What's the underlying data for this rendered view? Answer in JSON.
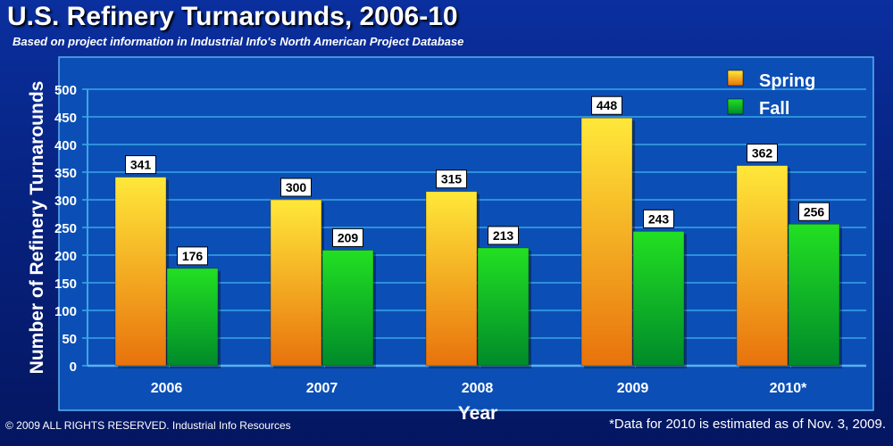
{
  "header": {
    "title": "U.S. Refinery Turnarounds, 2006-10",
    "subtitle": "Based on project information in Industrial Info's North American Project Database"
  },
  "footer": {
    "copyright": "© 2009 ALL RIGHTS RESERVED. Industrial Info Resources",
    "note": "*Data for 2010 is estimated as of Nov. 3, 2009."
  },
  "colors": {
    "spring_top": "#ffe83a",
    "spring_bottom": "#e8720c",
    "fall_top": "#22e022",
    "fall_bottom": "#008a2a",
    "grid": "#3aa6e6",
    "plot_bg": "#0b4fb6"
  },
  "chart_data": {
    "type": "bar",
    "categories": [
      "2006",
      "2007",
      "2008",
      "2009",
      "2010*"
    ],
    "series": [
      {
        "name": "Spring",
        "values": [
          341,
          300,
          315,
          448,
          362
        ]
      },
      {
        "name": "Fall",
        "values": [
          176,
          209,
          213,
          243,
          256
        ]
      }
    ],
    "xlabel": "Year",
    "ylabel": "Number of Refinery Turnarounds",
    "ylim": [
      0,
      500
    ],
    "yticks": [
      0,
      50,
      100,
      150,
      200,
      250,
      300,
      350,
      400,
      450,
      500
    ],
    "grid": true,
    "legend_position": "top-right",
    "data_labels": true
  }
}
